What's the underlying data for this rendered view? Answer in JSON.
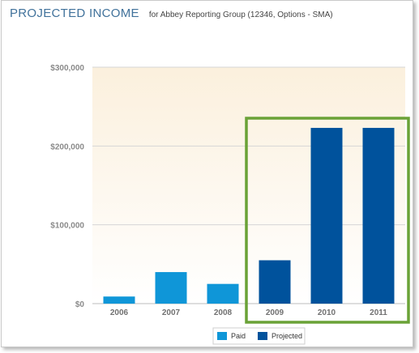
{
  "header": {
    "title": "PROJECTED INCOME",
    "subtitle": "for Abbey Reporting Group (12346, Options - SMA)"
  },
  "colors": {
    "paid": "#0f96d8",
    "projected": "#00529c",
    "highlight": "#6aa237",
    "plot_top": "#fbf0dd",
    "plot_bottom": "#ffffff",
    "grid": "#d6d6d6"
  },
  "chart_data": {
    "type": "bar",
    "title": "PROJECTED INCOME",
    "subtitle": "for Abbey Reporting Group (12346, Options - SMA)",
    "categories": [
      "2006",
      "2007",
      "2008",
      "2009",
      "2010",
      "2011"
    ],
    "series": [
      {
        "name": "Paid",
        "values": [
          9000,
          40000,
          25000,
          null,
          null,
          null
        ]
      },
      {
        "name": "Projected",
        "values": [
          null,
          null,
          null,
          55000,
          223000,
          223000
        ]
      }
    ],
    "yticks": [
      0,
      100000,
      200000,
      300000
    ],
    "ytick_labels": [
      "$0",
      "$100,000",
      "$200,000",
      "$300,000"
    ],
    "ylim": [
      0,
      300000
    ],
    "grid": true,
    "legend": [
      "Paid",
      "Projected"
    ],
    "legend_position": "bottom",
    "highlighted_categories": [
      "2009",
      "2010",
      "2011"
    ]
  }
}
